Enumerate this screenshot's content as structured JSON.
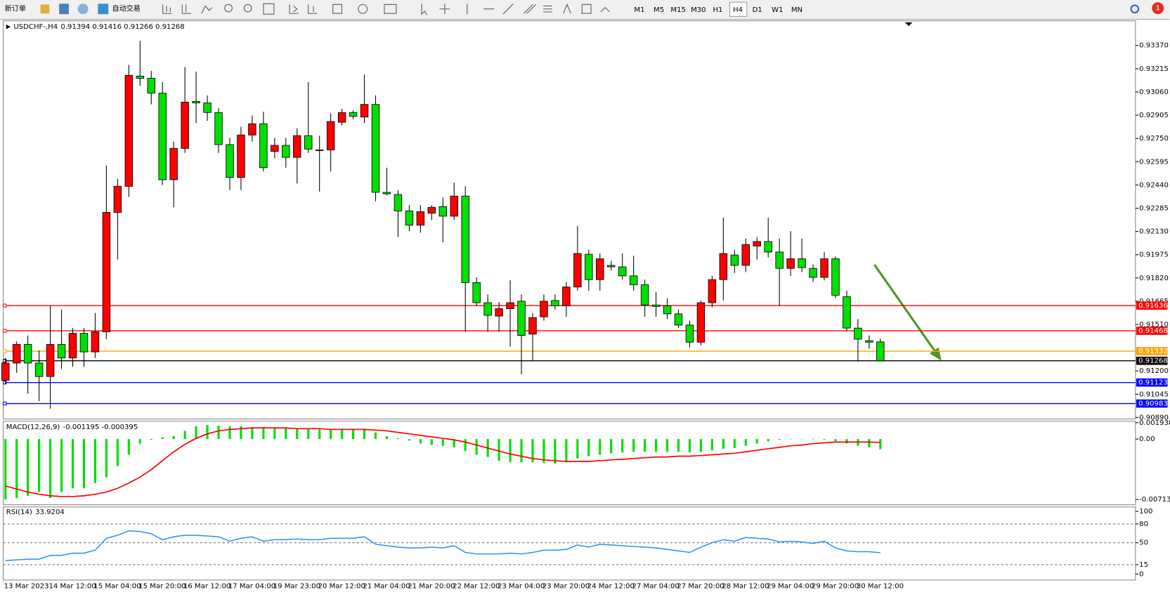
{
  "toolbar": {
    "new_order": "新订单",
    "auto_trade": "自动交易",
    "timeframes": [
      "M1",
      "M5",
      "M15",
      "M30",
      "H1",
      "H4",
      "D1",
      "W1",
      "MN"
    ],
    "badge": "1"
  },
  "chart_data": [
    {
      "type": "candlestick",
      "title": "USDCHF-,H4",
      "up_color": "#ff0000",
      "down_color": "#00e000",
      "x": [
        "13 Mar 2023",
        null,
        null,
        null,
        "14 Mar 12:00",
        null,
        null,
        null,
        "15 Mar 04:00",
        null,
        null,
        null,
        "15 Mar 20:00",
        null,
        null,
        null,
        "16 Mar 12:00",
        null,
        null,
        null,
        "17 Mar 04:00",
        null,
        null,
        null,
        "19 Mar 23:00",
        null,
        null,
        null,
        "20 Mar 12:00",
        null,
        null,
        null,
        "21 Mar 04:00",
        null,
        null,
        null,
        "21 Mar 20:00",
        null,
        null,
        null,
        "22 Mar 12:00",
        null,
        null,
        null,
        "23 Mar 04:00",
        null,
        null,
        null,
        "23 Mar 20:00",
        null,
        null,
        null,
        "24 Mar 12:00",
        null,
        null,
        null,
        "27 Mar 04:00",
        null,
        null,
        null,
        "27 Mar 20:00",
        null,
        null,
        null,
        "28 Mar 12:00",
        null,
        null,
        null,
        "29 Mar 04:00",
        null,
        null,
        null,
        "29 Mar 20:00",
        null,
        null,
        null,
        "30 Mar 12:00",
        null,
        null
      ],
      "open": [
        0.91138,
        0.91253,
        0.91377,
        0.91253,
        0.91163,
        0.91377,
        0.91287,
        0.91451,
        0.91327,
        0.91461,
        0.92257,
        0.92431,
        0.93166,
        0.93151,
        0.93052,
        0.92475,
        0.92684,
        0.92997,
        0.92987,
        0.92923,
        0.92709,
        0.9249,
        0.92773,
        0.92848,
        0.92664,
        0.92704,
        0.92624,
        0.92769,
        0.92674,
        0.92674,
        0.92858,
        0.92923,
        0.92893,
        0.92977,
        0.92391,
        0.92376,
        0.92267,
        0.92172,
        0.92252,
        0.92296,
        0.92232,
        0.92366,
        0.91789,
        0.91655,
        0.91566,
        0.91615,
        0.91665,
        0.91446,
        0.91561,
        0.9167,
        0.91635,
        0.9176,
        0.91978,
        0.91809,
        0.91904,
        0.91894,
        0.91834,
        0.91775,
        0.9164,
        0.91635,
        0.91581,
        0.91506,
        0.91392,
        0.91655,
        0.91809,
        0.91973,
        0.91904,
        0.92033,
        0.92063,
        0.91993,
        0.91884,
        0.91948,
        0.91884,
        0.91824,
        0.91948,
        0.91695,
        0.91486,
        0.91402,
        0.91394
      ],
      "high": [
        0.91287,
        0.91397,
        0.91437,
        0.91337,
        0.91635,
        0.9161,
        0.91486,
        0.91486,
        0.91586,
        0.9257,
        0.9248,
        0.93241,
        0.934,
        0.93201,
        0.93126,
        0.92729,
        0.93226,
        0.93196,
        0.93037,
        0.92952,
        0.92754,
        0.92828,
        0.92903,
        0.92928,
        0.92754,
        0.92754,
        0.92818,
        0.93126,
        0.92769,
        0.92918,
        0.92947,
        0.92937,
        0.93176,
        0.93037,
        0.92555,
        0.92406,
        0.92306,
        0.92306,
        0.92306,
        0.92356,
        0.92455,
        0.92431,
        0.91824,
        0.9171,
        0.9166,
        0.91804,
        0.9171,
        0.91586,
        0.9171,
        0.9171,
        0.91794,
        0.92167,
        0.92008,
        0.91983,
        0.91934,
        0.91983,
        0.91968,
        0.91809,
        0.91725,
        0.91685,
        0.9161,
        0.91536,
        0.9167,
        0.91834,
        0.92222,
        0.92008,
        0.92083,
        0.92093,
        0.92222,
        0.92083,
        0.92132,
        0.92083,
        0.91909,
        0.91993,
        0.91963,
        0.91735,
        0.91546,
        0.91437,
        0.91416
      ],
      "low": [
        0.91113,
        0.91188,
        0.91049,
        0.90999,
        0.90949,
        0.91213,
        0.91228,
        0.91228,
        0.91287,
        0.91412,
        0.91943,
        0.92361,
        0.93101,
        0.92977,
        0.9244,
        0.92291,
        0.92654,
        0.92853,
        0.92868,
        0.92654,
        0.92406,
        0.92406,
        0.92729,
        0.9253,
        0.92619,
        0.92555,
        0.9245,
        0.92654,
        0.92396,
        0.9253,
        0.92838,
        0.92878,
        0.92853,
        0.92331,
        0.92371,
        0.92093,
        0.92132,
        0.92122,
        0.92207,
        0.92058,
        0.92207,
        0.91461,
        0.91635,
        0.91461,
        0.91461,
        0.91362,
        0.91178,
        0.91268,
        0.91536,
        0.9161,
        0.91561,
        0.91735,
        0.91735,
        0.91735,
        0.91869,
        0.91809,
        0.91735,
        0.91561,
        0.91561,
        0.91546,
        0.91486,
        0.91357,
        0.91372,
        0.91625,
        0.9167,
        0.91854,
        0.91859,
        0.91943,
        0.91958,
        0.91635,
        0.91834,
        0.91859,
        0.91794,
        0.91804,
        0.91685,
        0.91466,
        0.91263,
        0.91347,
        0.91266
      ],
      "close": [
        0.91253,
        0.91377,
        0.91253,
        0.91163,
        0.91377,
        0.91287,
        0.91451,
        0.91327,
        0.91461,
        0.92257,
        0.92431,
        0.93171,
        0.93151,
        0.93052,
        0.92475,
        0.92684,
        0.92992,
        0.92987,
        0.92923,
        0.92709,
        0.9249,
        0.92773,
        0.92848,
        0.92555,
        0.92704,
        0.92624,
        0.92769,
        0.92679,
        0.92669,
        0.92863,
        0.92923,
        0.92898,
        0.92977,
        0.92391,
        0.92381,
        0.92267,
        0.92172,
        0.92262,
        0.92291,
        0.92232,
        0.92366,
        0.91789,
        0.91655,
        0.91571,
        0.91615,
        0.91655,
        0.91437,
        0.91556,
        0.91665,
        0.91635,
        0.9176,
        0.91983,
        0.91809,
        0.91948,
        0.91894,
        0.91834,
        0.91775,
        0.9164,
        0.9163,
        0.91581,
        0.91506,
        0.91392,
        0.91655,
        0.91809,
        0.91983,
        0.91904,
        0.92043,
        0.92063,
        0.91993,
        0.91884,
        0.91948,
        0.91889,
        0.91824,
        0.91948,
        0.91705,
        0.91486,
        0.91412,
        0.91392,
        0.91268
      ],
      "ylim": [
        0.9088,
        0.93524
      ],
      "yticks": [
        {
          "value": 0.9337,
          "label": "0.93370"
        },
        {
          "value": 0.93215,
          "label": "0.93215"
        },
        {
          "value": 0.9306,
          "label": "0.93060"
        },
        {
          "value": 0.92905,
          "label": "0.92905"
        },
        {
          "value": 0.9275,
          "label": "0.92750"
        },
        {
          "value": 0.92595,
          "label": "0.92595"
        },
        {
          "value": 0.9244,
          "label": "0.92440"
        },
        {
          "value": 0.92285,
          "label": "0.92285"
        },
        {
          "value": 0.9213,
          "label": "0.92130"
        },
        {
          "value": 0.91975,
          "label": "0.91975"
        },
        {
          "value": 0.9182,
          "label": "0.91820"
        },
        {
          "value": 0.91665,
          "label": "0.91665"
        },
        {
          "value": 0.9151,
          "label": "0.91510"
        },
        {
          "value": 0.912,
          "label": "0.91200"
        },
        {
          "value": 0.91045,
          "label": "0.91045"
        },
        {
          "value": 0.9089,
          "label": "0.90890"
        }
      ],
      "hlines": [
        {
          "value": 0.91636,
          "color": "#ff0000"
        },
        {
          "value": 0.91468,
          "color": "#ff0000"
        },
        {
          "value": 0.91332,
          "color": "#ffa500"
        },
        {
          "value": 0.91268,
          "color": "#000000"
        },
        {
          "value": 0.91123,
          "color": "#0000ff"
        },
        {
          "value": 0.90983,
          "color": "#0000ff"
        }
      ]
    },
    {
      "type": "macd",
      "title": "MACD(12,26,9)",
      "ylim": [
        -0.00766,
        0.00202
      ],
      "yticks": [
        0.001938,
        {
          "value": 0,
          "label": "0.00"
        },
        -0.007132
      ],
      "series": [
        {
          "color": "#00e000",
          "values": [
            -0.00713,
            -0.00695,
            -0.00669,
            -0.00625,
            -0.00695,
            -0.00625,
            -0.00581,
            -0.00581,
            -0.00519,
            -0.00449,
            -0.00317,
            -0.00185,
            -0.00053,
            -9e-05,
            0.00018,
            0.00035,
            0.00097,
            0.0015,
            0.00167,
            0.00158,
            0.0015,
            0.0015,
            0.00141,
            0.00141,
            0.00132,
            0.00132,
            0.00123,
            0.00123,
            0.00114,
            0.00123,
            0.00123,
            0.00123,
            0.00123,
            0.00079,
            0.00035,
            9e-05,
            -0.00018,
            -0.00053,
            -0.0007,
            -0.00079,
            -0.00097,
            -0.00141,
            -0.00185,
            -0.00211,
            -0.00255,
            -0.00273,
            -0.00273,
            -0.00273,
            -0.00282,
            -0.0029,
            -0.00273,
            -0.00229,
            -0.00202,
            -0.00185,
            -0.00167,
            -0.00158,
            -0.0015,
            -0.0015,
            -0.0015,
            -0.0015,
            -0.0015,
            -0.00158,
            -0.0015,
            -0.00132,
            -0.00114,
            -0.00106,
            -0.00079,
            -0.00053,
            -0.00026,
            -9e-05,
            -4e-05,
            -4e-05,
            -4e-05,
            -9e-05,
            -0.00026,
            -0.00053,
            -0.00079,
            -0.00097,
            -0.001195
          ]
        },
        {
          "color": "#ff0000",
          "values": [
            -0.00554,
            -0.0059,
            -0.00625,
            -0.00651,
            -0.00669,
            -0.00678,
            -0.00678,
            -0.00669,
            -0.00651,
            -0.00625,
            -0.00581,
            -0.00519,
            -0.00449,
            -0.00361,
            -0.00255,
            -0.0015,
            -0.00062,
            9e-05,
            0.00062,
            0.00097,
            0.00114,
            0.00123,
            0.00132,
            0.00132,
            0.00132,
            0.00132,
            0.00123,
            0.00123,
            0.00123,
            0.00114,
            0.00114,
            0.00114,
            0.00114,
            0.00106,
            0.00097,
            0.00079,
            0.00062,
            0.00044,
            0.00026,
            9e-05,
            -9e-05,
            -0.00035,
            -0.0007,
            -0.00106,
            -0.00141,
            -0.00176,
            -0.00202,
            -0.00229,
            -0.00246,
            -0.00255,
            -0.00264,
            -0.00264,
            -0.00264,
            -0.00255,
            -0.00246,
            -0.00238,
            -0.00229,
            -0.0022,
            -0.00211,
            -0.00211,
            -0.00202,
            -0.00202,
            -0.00194,
            -0.00185,
            -0.00176,
            -0.00167,
            -0.0015,
            -0.00132,
            -0.00114,
            -0.00097,
            -0.00079,
            -0.0007,
            -0.00053,
            -0.00044,
            -0.00035,
            -0.00035,
            -0.00035,
            -0.00035,
            -0.000395
          ]
        }
      ]
    },
    {
      "type": "line",
      "title": "RSI(14)",
      "color": "#1e90ff",
      "ylim": [
        -9.5,
        107
      ],
      "yticks": [
        100,
        80,
        50,
        15,
        0
      ],
      "levels": [
        80,
        50,
        15
      ],
      "values": [
        21.4,
        22.6,
        23.8,
        23.8,
        29.8,
        29.8,
        33.3,
        33.3,
        38.1,
        57.1,
        61.9,
        69.0,
        67.9,
        64.3,
        54.8,
        59.5,
        61.9,
        61.9,
        60.7,
        59.5,
        52.4,
        57.1,
        59.5,
        52.4,
        54.8,
        54.8,
        56.0,
        54.8,
        54.8,
        57.1,
        57.1,
        57.1,
        59.5,
        47.6,
        45.2,
        42.9,
        41.7,
        41.7,
        42.9,
        41.7,
        45.2,
        34.5,
        32.1,
        32.1,
        32.1,
        33.3,
        32.1,
        34.5,
        38.1,
        38.1,
        39.3,
        46.4,
        42.9,
        47.6,
        46.4,
        45.2,
        44.0,
        42.9,
        41.7,
        39.3,
        36.9,
        34.5,
        42.9,
        50.0,
        54.8,
        52.4,
        58.3,
        57.1,
        56.0,
        51.2,
        52.4,
        51.2,
        48.8,
        52.4,
        41.7,
        36.9,
        35.7,
        35.7,
        33.9204
      ]
    }
  ]
}
